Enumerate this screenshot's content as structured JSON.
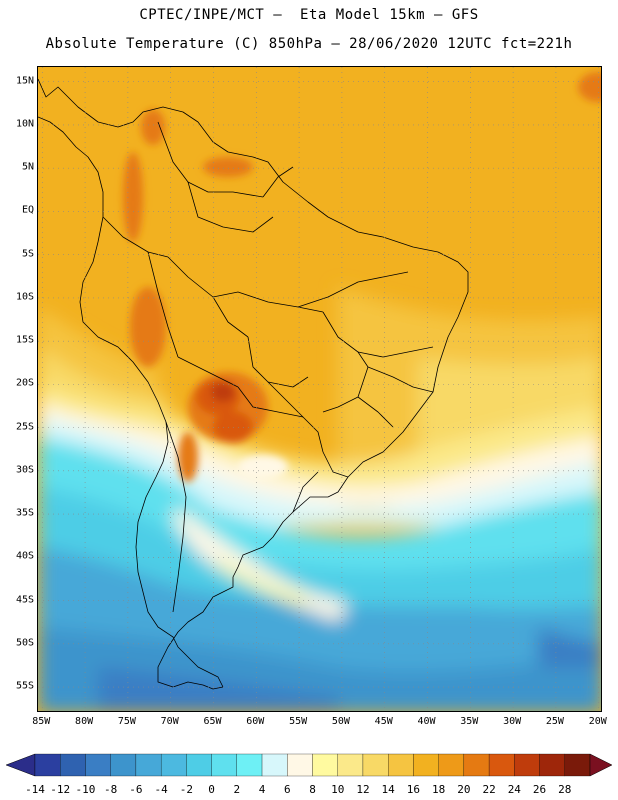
{
  "header": {
    "title_line1": "CPTEC/INPE/MCT –  Eta Model 15km – GFS",
    "title_line2": "Absolute Temperature (C) 850hPa – 28/06/2020 12UTC fct=221h"
  },
  "map": {
    "lat_labels": [
      "15N",
      "10N",
      "5N",
      "EQ",
      "5S",
      "10S",
      "15S",
      "20S",
      "25S",
      "30S",
      "35S",
      "40S",
      "45S",
      "50S",
      "55S"
    ],
    "lon_labels": [
      "85W",
      "80W",
      "75W",
      "70W",
      "65W",
      "60W",
      "55W",
      "50W",
      "45W",
      "40W",
      "35W",
      "30W",
      "25W",
      "20W"
    ],
    "lat_values": [
      15,
      10,
      5,
      0,
      -5,
      -10,
      -15,
      -20,
      -25,
      -30,
      -35,
      -40,
      -45,
      -50,
      -55
    ],
    "lon_values": [
      -85,
      -80,
      -75,
      -70,
      -65,
      -60,
      -55,
      -50,
      -45,
      -40,
      -35,
      -30,
      -25,
      -20
    ],
    "lat_range": [
      -58,
      16.7
    ],
    "lon_range": [
      -85.5,
      -19.5
    ]
  },
  "colorbar": {
    "labels": [
      "-14",
      "-12",
      "-10",
      "-8",
      "-6",
      "-4",
      "-2",
      "0",
      "2",
      "4",
      "6",
      "8",
      "10",
      "12",
      "14",
      "16",
      "18",
      "20",
      "22",
      "24",
      "26",
      "28"
    ],
    "colors": [
      "#2b3fa0",
      "#2f62b0",
      "#3a7ec4",
      "#3d94cc",
      "#46a8d8",
      "#4cb9e0",
      "#4ecde6",
      "#5fe0ee",
      "#6ef0f5",
      "#d7f7fb",
      "#fff8e6",
      "#fffaa0",
      "#fbe98a",
      "#f8d966",
      "#f5c441",
      "#f2b120",
      "#ee9a18",
      "#e57a12",
      "#d9580e",
      "#bf3c0c",
      "#9e260a",
      "#7a1a0a"
    ],
    "underflow_color": "#2b2d8a",
    "overflow_color": "#7a1020"
  }
}
